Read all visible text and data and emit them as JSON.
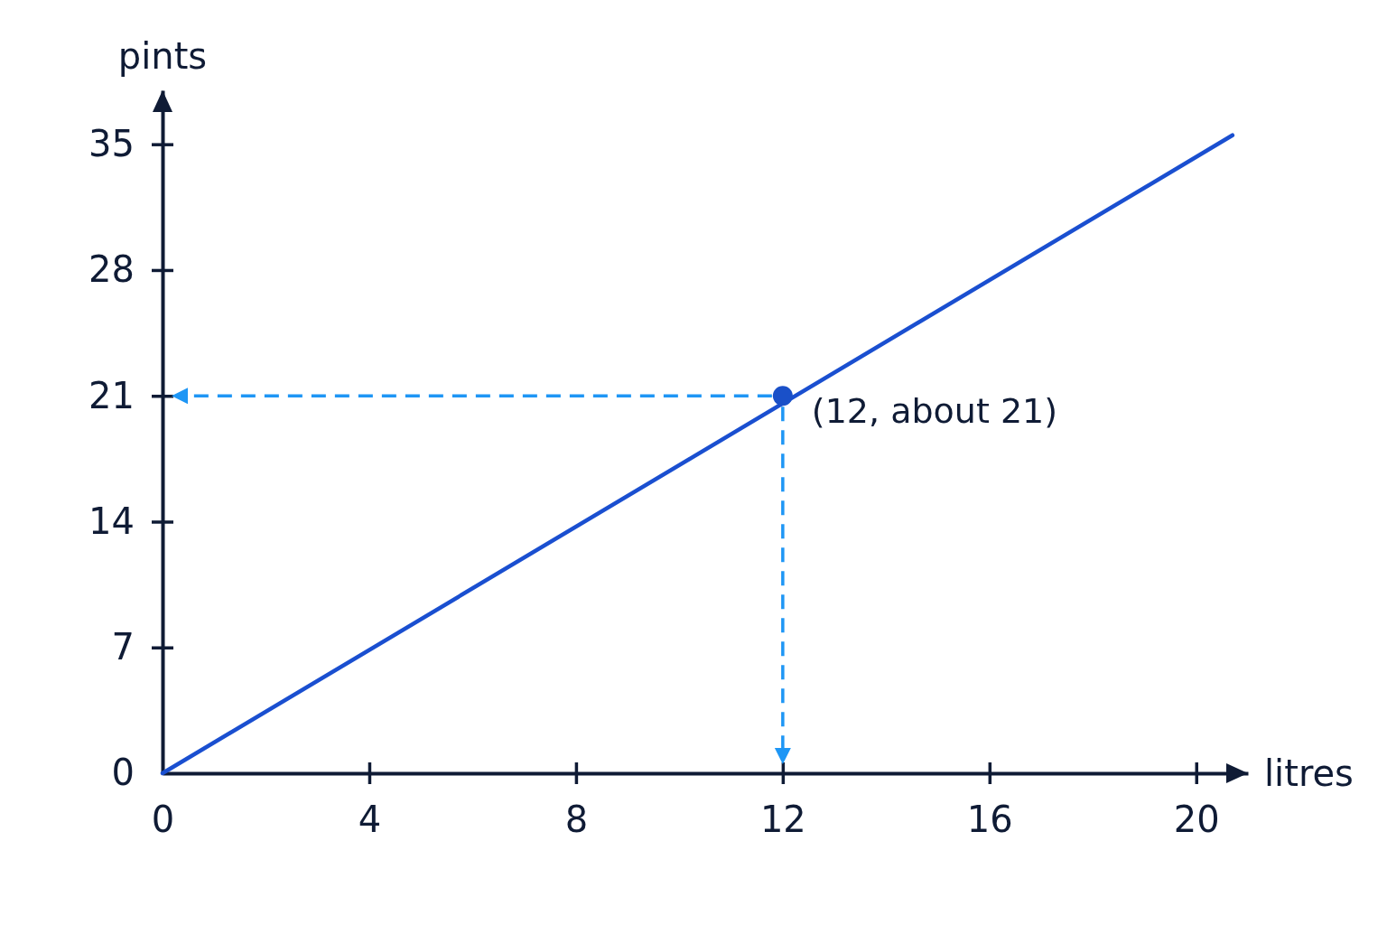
{
  "chart_data": {
    "type": "line",
    "xlabel": "litres",
    "ylabel": "pints",
    "xlim": [
      0,
      21
    ],
    "xticks": [
      0,
      4,
      8,
      12,
      16,
      20
    ],
    "ylim": [
      0,
      38
    ],
    "yticks": [
      0,
      7,
      14,
      21,
      28,
      35
    ],
    "series": [
      {
        "color": "#1a4fd0",
        "x": [
          0,
          20.7
        ],
        "values": [
          0,
          35.5
        ]
      },
      {
        "type": "scatter",
        "color": "#1a50c8",
        "marker": "circle",
        "x": [
          12
        ],
        "values": [
          21
        ]
      }
    ],
    "annotations": [
      {
        "text": "(12, about 21)",
        "x": 12,
        "y": 21
      }
    ]
  }
}
